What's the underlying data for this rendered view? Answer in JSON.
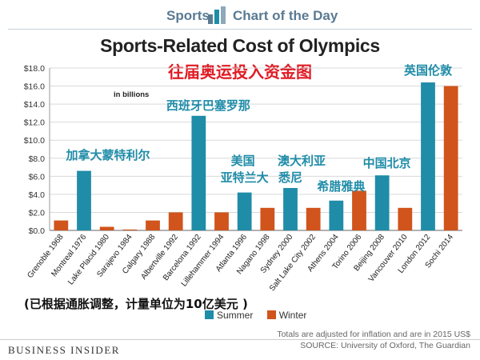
{
  "header": {
    "left_text": "Sports",
    "right_text": "Chart of the Day",
    "icon": "bar-chart-icon"
  },
  "chart_data": {
    "type": "bar",
    "title": "Sports-Related Cost of Olympics",
    "subtitle": "往届奥运投入资金图",
    "unit_label": "in billions",
    "ylim": [
      0,
      18
    ],
    "yticks": [
      "$0.0",
      "$2.0",
      "$4.0",
      "$6.0",
      "$8.0",
      "$10.0",
      "$12.0",
      "$14.0",
      "$16.0",
      "$18.0"
    ],
    "grid": true,
    "categories": [
      "Grenoble 1968",
      "Montreal 1976",
      "Lake Placid 1980",
      "Sarajevo 1984",
      "Calgary 1988",
      "Albertville 1992",
      "Barcelona 1992",
      "Lillehammer 1994",
      "Atlanta 1996",
      "Nagano 1998",
      "Sydney 2000",
      "Salt Lake City 2002",
      "Athens 2004",
      "Torino 2006",
      "Beijing 2008",
      "Vancouver 2010",
      "London 2012",
      "Sochi 2014"
    ],
    "values": [
      1.1,
      6.6,
      0.4,
      0.1,
      1.1,
      2.0,
      12.7,
      2.0,
      4.2,
      2.5,
      4.7,
      2.5,
      3.3,
      4.4,
      6.1,
      2.5,
      16.4,
      16.0
    ],
    "season": [
      "Winter",
      "Summer",
      "Winter",
      "Winter",
      "Winter",
      "Winter",
      "Summer",
      "Winter",
      "Summer",
      "Winter",
      "Summer",
      "Winter",
      "Summer",
      "Winter",
      "Summer",
      "Winter",
      "Summer",
      "Winter"
    ],
    "legend": [
      {
        "name": "Summer",
        "color": "#1f8ca8"
      },
      {
        "name": "Winter",
        "color": "#d0541c"
      }
    ],
    "legend_position": "bottom-center",
    "annotations": [
      {
        "text": "加拿大蒙特利尔",
        "category": "Montreal 1976"
      },
      {
        "text": "西班牙巴塞罗那",
        "category": "Barcelona 1992"
      },
      {
        "text": "美国",
        "category": "Atlanta 1996"
      },
      {
        "text": "亚特兰大",
        "category": "Atlanta 1996"
      },
      {
        "text": "澳大利亚",
        "category": "Sydney 2000"
      },
      {
        "text": "悉尼",
        "category": "Sydney 2000"
      },
      {
        "text": "希腊雅典",
        "category": "Athens 2004"
      },
      {
        "text": "中国北京",
        "category": "Beijing 2008"
      },
      {
        "text": "英国伦敦",
        "category": "London 2012"
      }
    ]
  },
  "note": "(已根据通胀调整，计量单位为10亿美元 )",
  "footer": {
    "brand": "BUSINESS INSIDER",
    "line1": "Totals are adjusted for inflation and are in 2015 US$",
    "line2": "SOURCE: University of Oxford, The Guardian"
  }
}
